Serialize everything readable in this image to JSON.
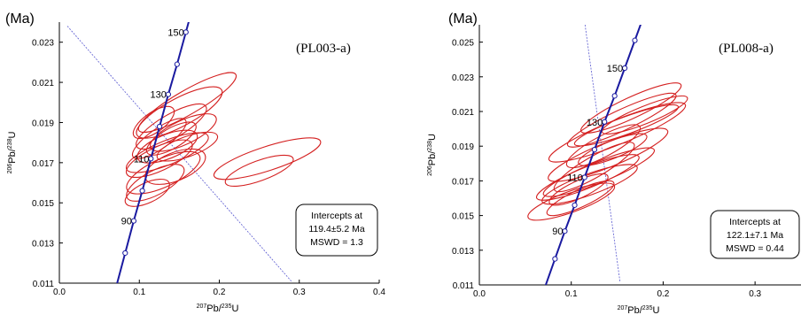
{
  "chart_data": [
    {
      "type": "concordia",
      "sample": "(PL003-a)",
      "unit_label": "(Ma)",
      "xlabel": {
        "mass_x": "207",
        "el_x": "Pb/",
        "mass_u": "235",
        "el_u": "U"
      },
      "ylabel": {
        "mass_x": "206",
        "el_x": "Pb/",
        "mass_u": "238",
        "el_u": "U"
      },
      "xlim": [
        0.0,
        0.4
      ],
      "ylim": [
        0.011,
        0.024
      ],
      "xticks": [
        "0.0",
        "0.1",
        "0.2",
        "0.3",
        "0.4"
      ],
      "yticks": [
        "0.011",
        "0.013",
        "0.015",
        "0.017",
        "0.019",
        "0.021",
        "0.023"
      ],
      "age_points": [
        {
          "age": 80,
          "x": 0.0823,
          "y": 0.0125
        },
        {
          "age": 90,
          "x": 0.093,
          "y": 0.0141,
          "label": "90"
        },
        {
          "age": 100,
          "x": 0.1037,
          "y": 0.0156
        },
        {
          "age": 110,
          "x": 0.1145,
          "y": 0.0172,
          "label": "110"
        },
        {
          "age": 120,
          "x": 0.1253,
          "y": 0.0188
        },
        {
          "age": 130,
          "x": 0.1362,
          "y": 0.0204,
          "label": "130"
        },
        {
          "age": 140,
          "x": 0.1472,
          "y": 0.0219
        },
        {
          "age": 150,
          "x": 0.1582,
          "y": 0.0235,
          "label": "150"
        }
      ],
      "discordia": {
        "x1": 0.01,
        "y1": 0.0238,
        "x2": 0.29,
        "y2": 0.0111
      },
      "ellipses": [
        {
          "x": 0.125,
          "y": 0.0172,
          "rx": 0.045,
          "ry": 0.0006,
          "rot": -25
        },
        {
          "x": 0.14,
          "y": 0.0188,
          "rx": 0.05,
          "ry": 0.0006,
          "rot": -30
        },
        {
          "x": 0.15,
          "y": 0.0195,
          "rx": 0.06,
          "ry": 0.0007,
          "rot": -28
        },
        {
          "x": 0.135,
          "y": 0.0178,
          "rx": 0.04,
          "ry": 0.0006,
          "rot": -22
        },
        {
          "x": 0.12,
          "y": 0.016,
          "rx": 0.04,
          "ry": 0.0006,
          "rot": -28
        },
        {
          "x": 0.13,
          "y": 0.0165,
          "rx": 0.05,
          "ry": 0.0007,
          "rot": -25
        },
        {
          "x": 0.14,
          "y": 0.0182,
          "rx": 0.035,
          "ry": 0.0005,
          "rot": -30
        },
        {
          "x": 0.155,
          "y": 0.0185,
          "rx": 0.045,
          "ry": 0.0006,
          "rot": -25
        },
        {
          "x": 0.11,
          "y": 0.0155,
          "rx": 0.03,
          "ry": 0.0005,
          "rot": -25
        },
        {
          "x": 0.16,
          "y": 0.02,
          "rx": 0.07,
          "ry": 0.0006,
          "rot": -30
        },
        {
          "x": 0.135,
          "y": 0.0175,
          "rx": 0.055,
          "ry": 0.0006,
          "rot": -22
        },
        {
          "x": 0.125,
          "y": 0.0182,
          "rx": 0.04,
          "ry": 0.0005,
          "rot": -35
        },
        {
          "x": 0.26,
          "y": 0.0172,
          "rx": 0.07,
          "ry": 0.0006,
          "rot": -18
        },
        {
          "x": 0.25,
          "y": 0.0166,
          "rx": 0.045,
          "ry": 0.0005,
          "rot": -20
        },
        {
          "x": 0.145,
          "y": 0.0168,
          "rx": 0.04,
          "ry": 0.0007,
          "rot": -22
        },
        {
          "x": 0.118,
          "y": 0.019,
          "rx": 0.03,
          "ry": 0.0005,
          "rot": -35
        },
        {
          "x": 0.16,
          "y": 0.0178,
          "rx": 0.04,
          "ry": 0.0005,
          "rot": -20
        }
      ],
      "intercepts": {
        "line1": "Intercepts at",
        "line2": "119.4±5.2 Ma",
        "line3": "MSWD = 1.3"
      }
    },
    {
      "type": "concordia",
      "sample": "(PL008-a)",
      "unit_label": "(Ma)",
      "xlabel": {
        "mass_x": "207",
        "el_x": "Pb/",
        "mass_u": "235",
        "el_u": "U"
      },
      "ylabel": {
        "mass_x": "206",
        "el_x": "Pb/",
        "mass_u": "238",
        "el_u": "U"
      },
      "xlim": [
        0.0,
        0.35
      ],
      "ylim": [
        0.011,
        0.026
      ],
      "xticks": [
        "0.0",
        "0.1",
        "0.2",
        "0.3"
      ],
      "yticks": [
        "0.011",
        "0.013",
        "0.015",
        "0.017",
        "0.019",
        "0.021",
        "0.023",
        "0.025"
      ],
      "age_points": [
        {
          "age": 80,
          "x": 0.0823,
          "y": 0.0125
        },
        {
          "age": 90,
          "x": 0.093,
          "y": 0.0141,
          "label": "90"
        },
        {
          "age": 100,
          "x": 0.1037,
          "y": 0.0156
        },
        {
          "age": 110,
          "x": 0.1145,
          "y": 0.0172,
          "label": "110"
        },
        {
          "age": 120,
          "x": 0.1253,
          "y": 0.0188
        },
        {
          "age": 130,
          "x": 0.1362,
          "y": 0.0204,
          "label": "130"
        },
        {
          "age": 140,
          "x": 0.1472,
          "y": 0.0219
        },
        {
          "age": 150,
          "x": 0.1582,
          "y": 0.0235,
          "label": "150"
        },
        {
          "age": 160,
          "x": 0.1692,
          "y": 0.0251
        }
      ],
      "discordia": {
        "x1": 0.115,
        "y1": 0.026,
        "x2": 0.153,
        "y2": 0.0112
      },
      "ellipses": [
        {
          "x": 0.13,
          "y": 0.0175,
          "rx": 0.065,
          "ry": 0.0006,
          "rot": -22
        },
        {
          "x": 0.14,
          "y": 0.0185,
          "rx": 0.07,
          "ry": 0.0007,
          "rot": -22
        },
        {
          "x": 0.12,
          "y": 0.0168,
          "rx": 0.055,
          "ry": 0.0006,
          "rot": -20
        },
        {
          "x": 0.15,
          "y": 0.0198,
          "rx": 0.08,
          "ry": 0.0007,
          "rot": -22
        },
        {
          "x": 0.11,
          "y": 0.016,
          "rx": 0.04,
          "ry": 0.0005,
          "rot": -25
        },
        {
          "x": 0.16,
          "y": 0.0202,
          "rx": 0.06,
          "ry": 0.0005,
          "rot": -20
        },
        {
          "x": 0.125,
          "y": 0.0178,
          "rx": 0.05,
          "ry": 0.0006,
          "rot": -30
        },
        {
          "x": 0.135,
          "y": 0.019,
          "rx": 0.045,
          "ry": 0.0006,
          "rot": -28
        },
        {
          "x": 0.1,
          "y": 0.0158,
          "rx": 0.05,
          "ry": 0.0006,
          "rot": -20
        },
        {
          "x": 0.145,
          "y": 0.0188,
          "rx": 0.04,
          "ry": 0.0005,
          "rot": -22
        },
        {
          "x": 0.118,
          "y": 0.0172,
          "rx": 0.06,
          "ry": 0.0006,
          "rot": -22
        },
        {
          "x": 0.155,
          "y": 0.0205,
          "rx": 0.065,
          "ry": 0.0006,
          "rot": -25
        },
        {
          "x": 0.165,
          "y": 0.0212,
          "rx": 0.06,
          "ry": 0.0006,
          "rot": -25
        },
        {
          "x": 0.18,
          "y": 0.0208,
          "rx": 0.05,
          "ry": 0.0005,
          "rot": -22
        },
        {
          "x": 0.108,
          "y": 0.0165,
          "rx": 0.035,
          "ry": 0.0005,
          "rot": -25
        }
      ],
      "intercepts": {
        "line1": "Intercepts at",
        "line2": "122.1±7.1  Ma",
        "line3": "MSWD = 0.44"
      }
    }
  ]
}
